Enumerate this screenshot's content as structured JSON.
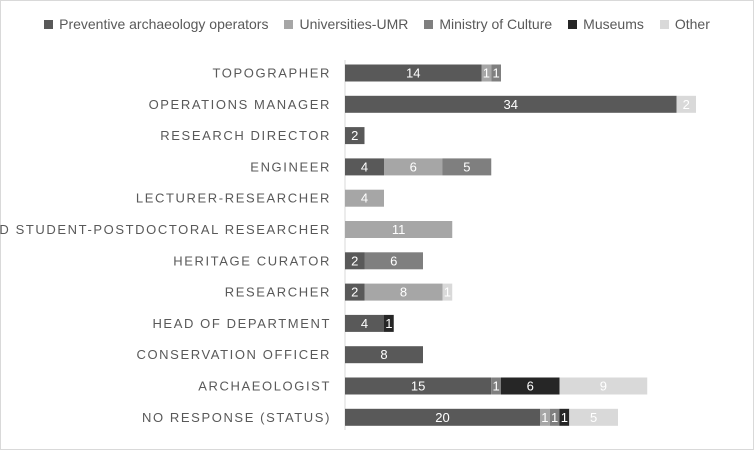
{
  "chart_data": {
    "type": "bar",
    "orientation": "horizontal",
    "stacked": true,
    "categories": [
      "TOPOGRAPHER",
      "OPERATIONS MANAGER",
      "RESEARCH DIRECTOR",
      "ENGINEER",
      "LECTURER-RESEARCHER",
      "PHD STUDENT-POSTDOCTORAL RESEARCHER",
      "HERITAGE CURATOR",
      "RESEARCHER",
      "HEAD OF DEPARTMENT",
      "CONSERVATION OFFICER",
      "ARCHAEOLOGIST",
      "NO RESPONSE (STATUS)"
    ],
    "series": [
      {
        "name": "Preventive archaeology operators",
        "color": "#595959",
        "label_color": "#ffffff",
        "values": [
          14,
          34,
          2,
          4,
          0,
          0,
          2,
          2,
          4,
          8,
          15,
          20
        ]
      },
      {
        "name": "Universities-UMR",
        "color": "#a6a6a6",
        "label_color": "#ffffff",
        "values": [
          1,
          0,
          0,
          6,
          4,
          11,
          0,
          8,
          0,
          0,
          0,
          1
        ]
      },
      {
        "name": "Ministry of Culture",
        "color": "#7f7f7f",
        "label_color": "#ffffff",
        "values": [
          1,
          0,
          0,
          5,
          0,
          0,
          6,
          0,
          0,
          0,
          1,
          1
        ]
      },
      {
        "name": "Museums",
        "color": "#262626",
        "label_color": "#ffffff",
        "values": [
          0,
          0,
          0,
          0,
          0,
          0,
          0,
          0,
          1,
          0,
          6,
          1
        ]
      },
      {
        "name": "Other",
        "color": "#d9d9d9",
        "label_color": "#ffffff",
        "values": [
          0,
          2,
          0,
          0,
          0,
          0,
          0,
          1,
          0,
          0,
          9,
          5
        ]
      }
    ],
    "xlim": [
      0,
      42
    ],
    "legend": "top",
    "grid": false
  }
}
